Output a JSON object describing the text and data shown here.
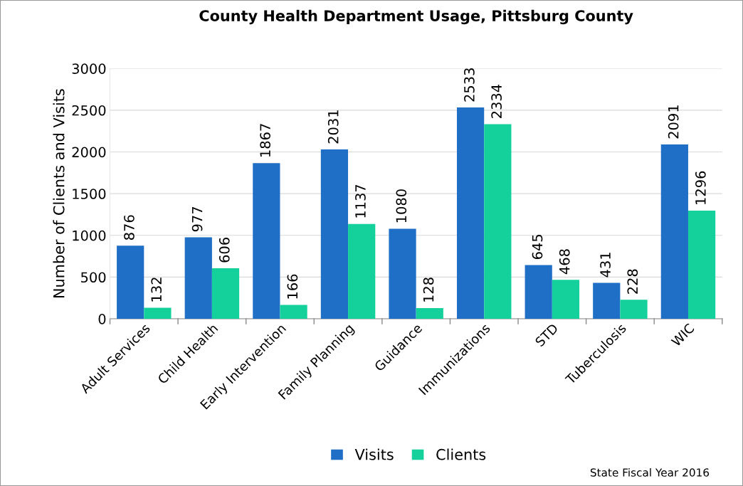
{
  "chart_data": {
    "type": "bar",
    "title": "County Health Department Usage, Pittsburg County",
    "ylabel": "Number of Clients and Visits",
    "categories": [
      "Adult Services",
      "Child Health",
      "Early Intervention",
      "Family Planning",
      "Guidance",
      "Immunizations",
      "STD",
      "Tuberculosis",
      "WIC"
    ],
    "series": [
      {
        "name": "Visits",
        "color": "#1f6fc6",
        "values": [
          876,
          977,
          1867,
          2031,
          1080,
          2533,
          645,
          431,
          2091
        ]
      },
      {
        "name": "Clients",
        "color": "#14d19c",
        "values": [
          132,
          606,
          166,
          1137,
          128,
          2334,
          468,
          228,
          1296
        ]
      }
    ],
    "ylim": [
      0,
      3000
    ],
    "yticks": [
      0,
      500,
      1000,
      1500,
      2000,
      2500,
      3000
    ],
    "grid": "y",
    "legend": "bottom",
    "data_labels": true,
    "annotations": [
      "State Fiscal Year 2016"
    ]
  }
}
